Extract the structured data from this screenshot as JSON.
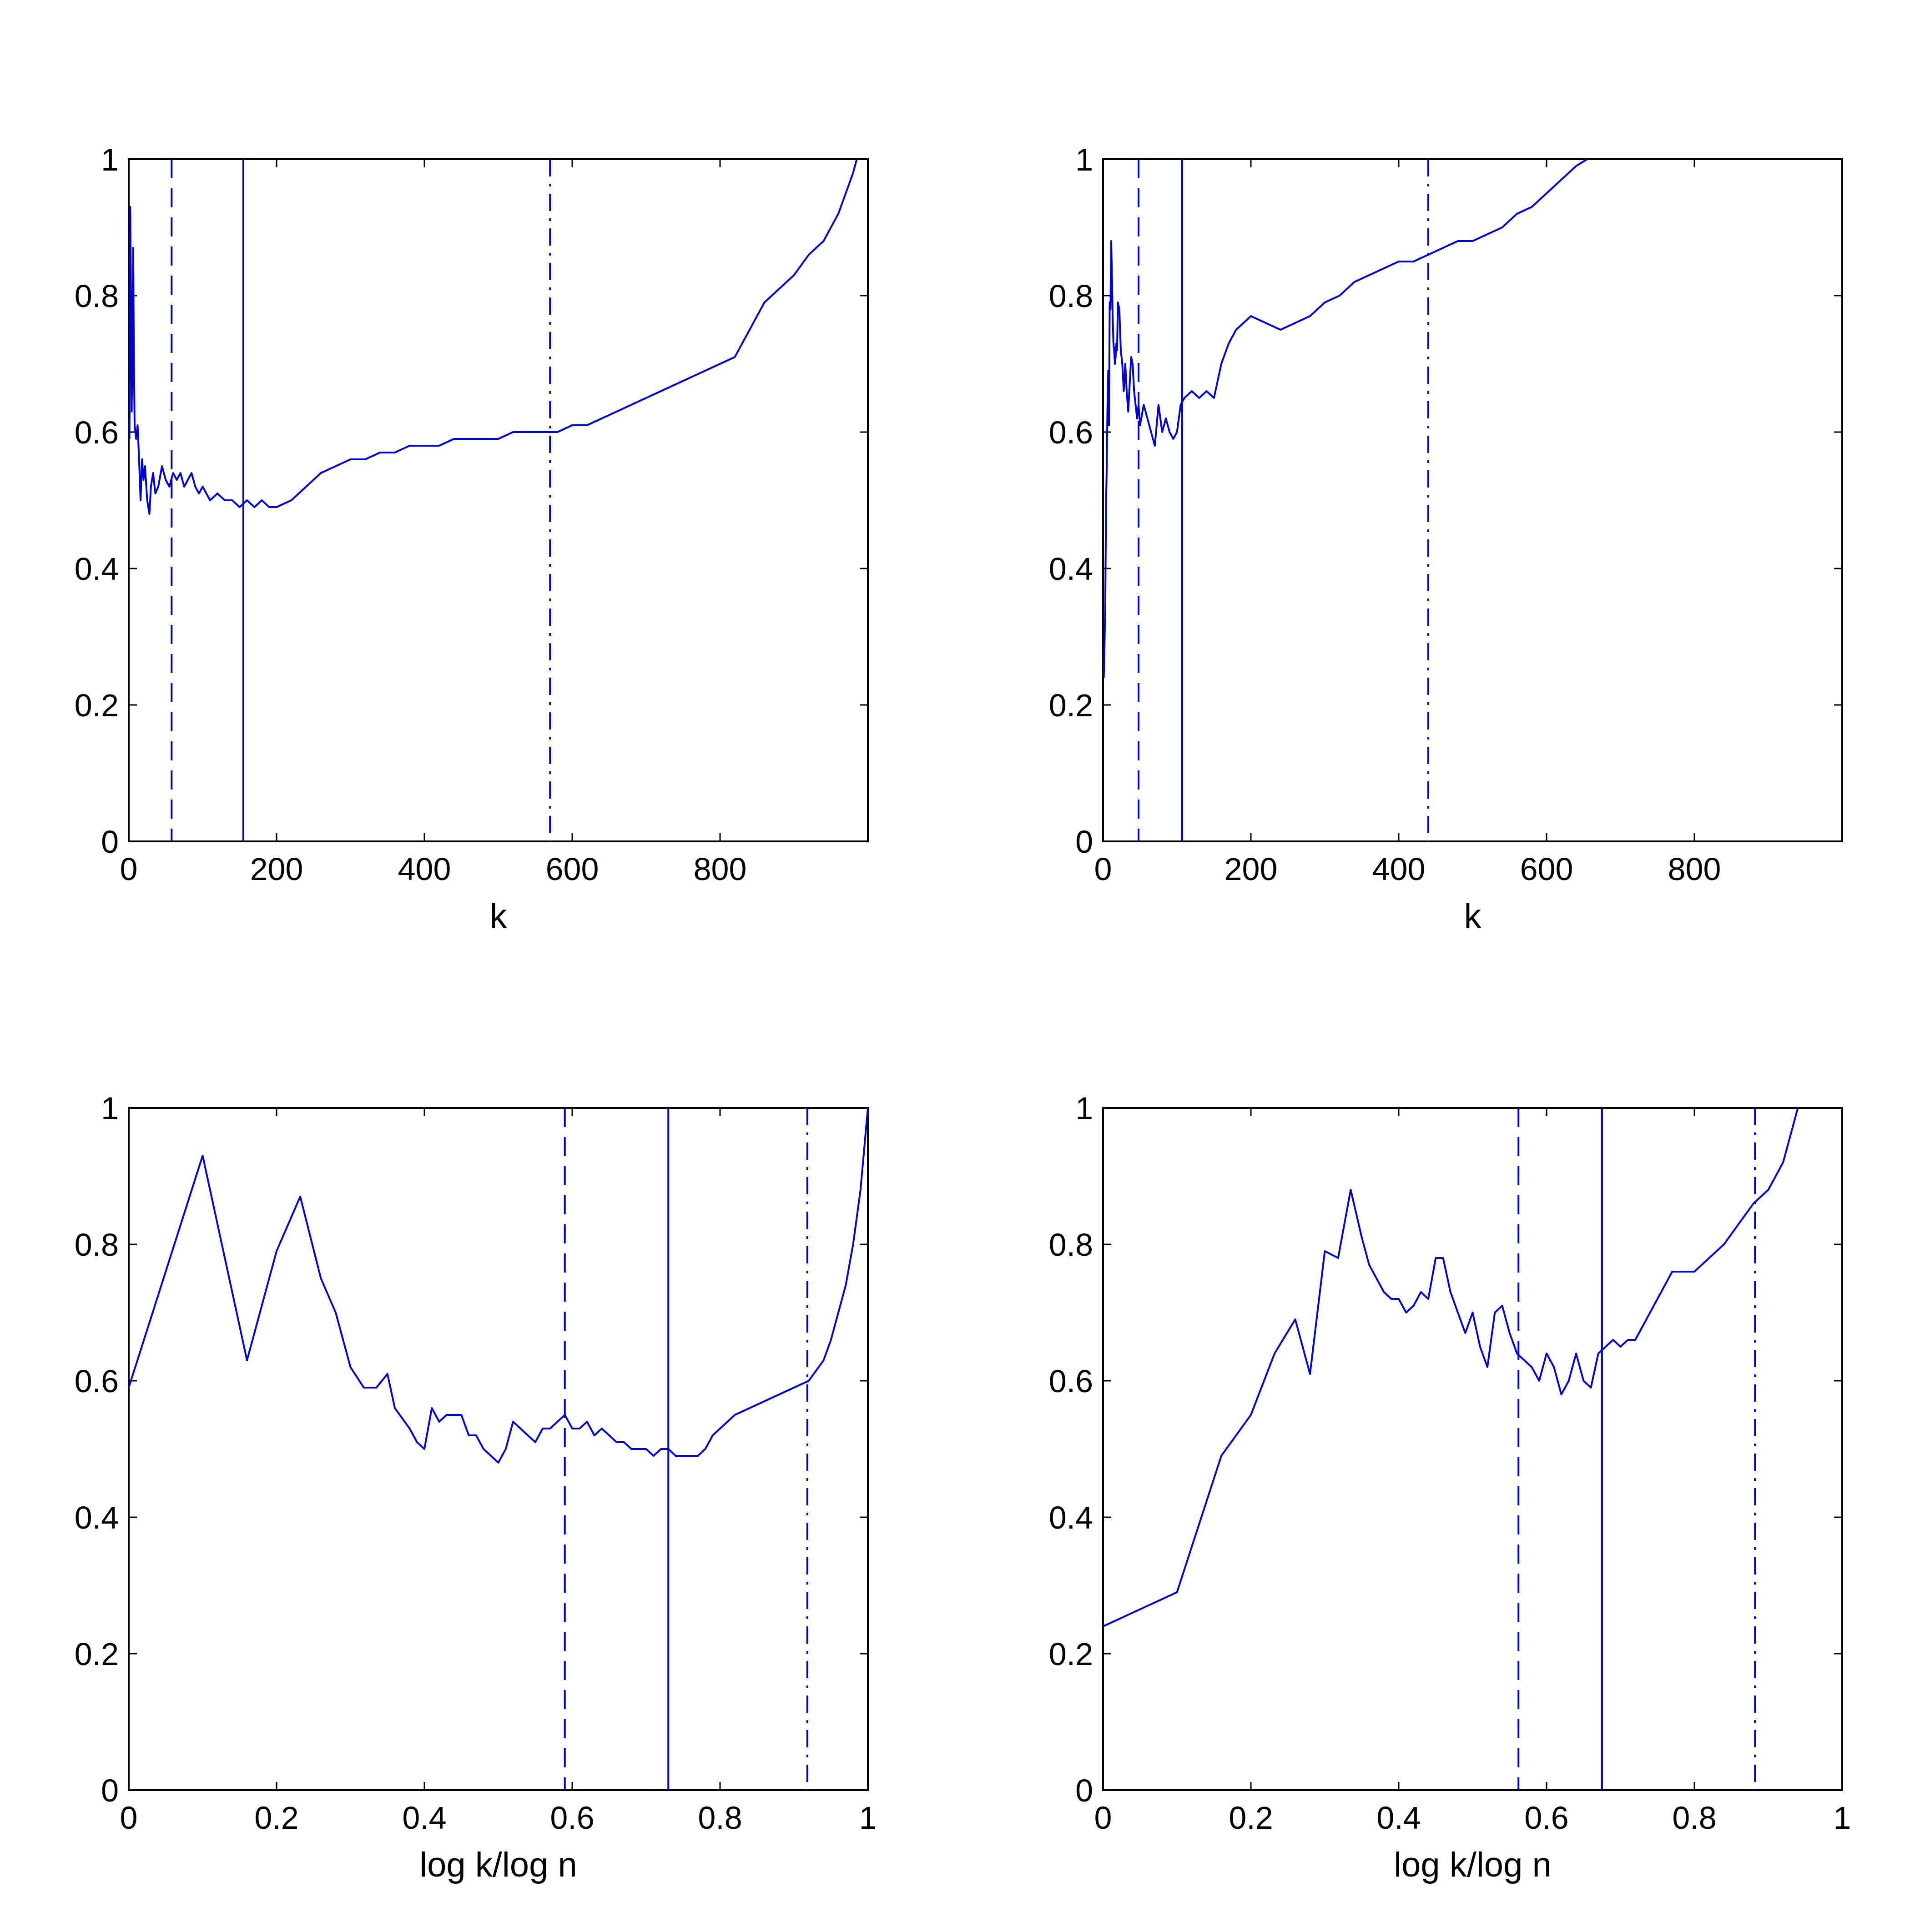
{
  "colors": {
    "line": "#0000d0",
    "axes": "#000000",
    "background": "#ffffff"
  },
  "chart_data": [
    {
      "type": "line",
      "xlabel": "k",
      "ylabel": "",
      "xlim": [
        0,
        1000
      ],
      "ylim": [
        0,
        1
      ],
      "grid": false,
      "x_ticks": [
        0,
        200,
        400,
        600,
        800
      ],
      "x_tick_labels": [
        "0",
        "200",
        "400",
        "600",
        "800"
      ],
      "y_ticks": [
        0,
        0.2,
        0.4,
        0.6,
        0.8,
        1
      ],
      "y_tick_labels": [
        "0",
        "0.2",
        "0.4",
        "0.6",
        "0.8",
        "1"
      ],
      "series": [
        {
          "x": [
            1,
            2,
            3,
            4,
            5,
            6,
            7,
            8,
            10,
            12,
            14,
            16,
            18,
            20,
            22,
            25,
            28,
            30,
            33,
            36,
            40,
            45,
            50,
            55,
            60,
            65,
            70,
            75,
            80,
            85,
            90,
            95,
            100,
            110,
            120,
            130,
            140,
            150,
            160,
            170,
            180,
            190,
            200,
            220,
            240,
            260,
            280,
            300,
            320,
            340,
            360,
            380,
            400,
            420,
            440,
            460,
            480,
            500,
            520,
            540,
            560,
            580,
            600,
            620,
            640,
            660,
            680,
            700,
            720,
            740,
            760,
            780,
            800,
            820,
            840,
            860,
            880,
            900,
            920,
            940,
            960,
            970,
            980,
            985
          ],
          "y": [
            0.59,
            0.93,
            0.8,
            0.63,
            0.75,
            0.87,
            0.7,
            0.61,
            0.59,
            0.61,
            0.56,
            0.5,
            0.56,
            0.53,
            0.55,
            0.5,
            0.48,
            0.52,
            0.54,
            0.51,
            0.52,
            0.55,
            0.53,
            0.52,
            0.54,
            0.53,
            0.54,
            0.52,
            0.53,
            0.54,
            0.52,
            0.51,
            0.52,
            0.5,
            0.51,
            0.5,
            0.5,
            0.49,
            0.5,
            0.49,
            0.5,
            0.49,
            0.49,
            0.5,
            0.52,
            0.54,
            0.55,
            0.56,
            0.56,
            0.57,
            0.57,
            0.58,
            0.58,
            0.58,
            0.59,
            0.59,
            0.59,
            0.59,
            0.6,
            0.6,
            0.6,
            0.6,
            0.61,
            0.61,
            0.62,
            0.63,
            0.64,
            0.65,
            0.66,
            0.67,
            0.68,
            0.69,
            0.7,
            0.71,
            0.75,
            0.79,
            0.81,
            0.83,
            0.86,
            0.88,
            0.92,
            0.95,
            0.98,
            1.0
          ]
        }
      ],
      "vlines": [
        {
          "x": 58,
          "style": "dashed"
        },
        {
          "x": 155,
          "style": "solid"
        },
        {
          "x": 570,
          "style": "dashdot"
        }
      ]
    },
    {
      "type": "line",
      "xlabel": "k",
      "ylabel": "",
      "xlim": [
        0,
        1000
      ],
      "ylim": [
        0,
        1
      ],
      "grid": false,
      "x_ticks": [
        0,
        200,
        400,
        600,
        800
      ],
      "x_tick_labels": [
        "0",
        "200",
        "400",
        "600",
        "800"
      ],
      "y_ticks": [
        0,
        0.2,
        0.4,
        0.6,
        0.8,
        1
      ],
      "y_tick_labels": [
        "0",
        "0.2",
        "0.4",
        "0.6",
        "0.8",
        "1"
      ],
      "series": [
        {
          "x": [
            1,
            2,
            3,
            4,
            5,
            6,
            7,
            8,
            9,
            10,
            11,
            12,
            13,
            14,
            15,
            16,
            17,
            18,
            19,
            20,
            22,
            24,
            26,
            28,
            30,
            32,
            34,
            36,
            38,
            40,
            42,
            44,
            46,
            48,
            50,
            55,
            60,
            65,
            70,
            75,
            80,
            85,
            90,
            95,
            100,
            105,
            110,
            120,
            130,
            140,
            150,
            160,
            170,
            180,
            190,
            200,
            220,
            240,
            260,
            280,
            300,
            320,
            340,
            360,
            380,
            400,
            420,
            440,
            460,
            480,
            500,
            520,
            540,
            560,
            580,
            600,
            620,
            640,
            655
          ],
          "y": [
            0.24,
            0.29,
            0.35,
            0.49,
            0.55,
            0.64,
            0.69,
            0.61,
            0.79,
            0.78,
            0.88,
            0.83,
            0.77,
            0.73,
            0.72,
            0.7,
            0.71,
            0.73,
            0.72,
            0.79,
            0.78,
            0.72,
            0.7,
            0.66,
            0.7,
            0.66,
            0.63,
            0.67,
            0.71,
            0.7,
            0.66,
            0.64,
            0.62,
            0.64,
            0.61,
            0.64,
            0.62,
            0.6,
            0.58,
            0.64,
            0.6,
            0.62,
            0.6,
            0.59,
            0.6,
            0.64,
            0.65,
            0.66,
            0.65,
            0.66,
            0.65,
            0.7,
            0.73,
            0.75,
            0.76,
            0.77,
            0.76,
            0.75,
            0.76,
            0.77,
            0.79,
            0.8,
            0.82,
            0.83,
            0.84,
            0.85,
            0.85,
            0.86,
            0.87,
            0.88,
            0.88,
            0.89,
            0.9,
            0.92,
            0.93,
            0.95,
            0.97,
            0.99,
            1.0
          ]
        }
      ],
      "vlines": [
        {
          "x": 48,
          "style": "dashed"
        },
        {
          "x": 107,
          "style": "solid"
        },
        {
          "x": 440,
          "style": "dashdot"
        }
      ]
    },
    {
      "type": "line",
      "xlabel": "log k/log n",
      "ylabel": "",
      "xlim": [
        0,
        1
      ],
      "ylim": [
        0,
        1
      ],
      "grid": false,
      "x_ticks": [
        0,
        0.2,
        0.4,
        0.6,
        0.8,
        1
      ],
      "x_tick_labels": [
        "0",
        "0.2",
        "0.4",
        "0.6",
        "0.8",
        "1"
      ],
      "y_ticks": [
        0,
        0.2,
        0.4,
        0.6,
        0.8,
        1
      ],
      "y_tick_labels": [
        "0",
        "0.2",
        "0.4",
        "0.6",
        "0.8",
        "1"
      ],
      "series": [
        {
          "x": [
            0,
            0.1,
            0.16,
            0.2,
            0.232,
            0.26,
            0.28,
            0.3,
            0.318,
            0.335,
            0.35,
            0.36,
            0.38,
            0.39,
            0.4,
            0.41,
            0.42,
            0.43,
            0.44,
            0.45,
            0.46,
            0.47,
            0.48,
            0.49,
            0.5,
            0.51,
            0.515,
            0.52,
            0.53,
            0.54,
            0.55,
            0.56,
            0.57,
            0.58,
            0.59,
            0.6,
            0.61,
            0.62,
            0.63,
            0.64,
            0.65,
            0.66,
            0.67,
            0.68,
            0.69,
            0.7,
            0.71,
            0.72,
            0.73,
            0.74,
            0.75,
            0.76,
            0.77,
            0.78,
            0.79,
            0.8,
            0.82,
            0.84,
            0.86,
            0.88,
            0.9,
            0.92,
            0.94,
            0.95,
            0.96,
            0.97,
            0.98,
            0.99,
            1.0
          ],
          "y": [
            0.59,
            0.93,
            0.63,
            0.79,
            0.87,
            0.75,
            0.7,
            0.62,
            0.59,
            0.59,
            0.61,
            0.56,
            0.53,
            0.51,
            0.5,
            0.56,
            0.54,
            0.55,
            0.55,
            0.55,
            0.52,
            0.52,
            0.5,
            0.49,
            0.48,
            0.5,
            0.52,
            0.54,
            0.53,
            0.52,
            0.51,
            0.53,
            0.53,
            0.54,
            0.55,
            0.53,
            0.53,
            0.54,
            0.52,
            0.53,
            0.52,
            0.51,
            0.51,
            0.5,
            0.5,
            0.5,
            0.49,
            0.5,
            0.5,
            0.49,
            0.49,
            0.49,
            0.49,
            0.5,
            0.52,
            0.53,
            0.55,
            0.56,
            0.57,
            0.58,
            0.59,
            0.6,
            0.63,
            0.66,
            0.7,
            0.74,
            0.8,
            0.88,
            1.0
          ]
        }
      ],
      "vlines": [
        {
          "x": 0.59,
          "style": "dashed"
        },
        {
          "x": 0.73,
          "style": "solid"
        },
        {
          "x": 0.918,
          "style": "dashdot"
        }
      ]
    },
    {
      "type": "line",
      "xlabel": "log k/log n",
      "ylabel": "",
      "xlim": [
        0,
        1
      ],
      "ylim": [
        0,
        1
      ],
      "grid": false,
      "x_ticks": [
        0,
        0.2,
        0.4,
        0.6,
        0.8,
        1
      ],
      "x_tick_labels": [
        "0",
        "0.2",
        "0.4",
        "0.6",
        "0.8",
        "1"
      ],
      "y_ticks": [
        0,
        0.2,
        0.4,
        0.6,
        0.8,
        1
      ],
      "y_tick_labels": [
        "0",
        "0.2",
        "0.4",
        "0.6",
        "0.8",
        "1"
      ],
      "series": [
        {
          "x": [
            0,
            0.1,
            0.16,
            0.2,
            0.232,
            0.26,
            0.28,
            0.3,
            0.318,
            0.335,
            0.35,
            0.36,
            0.38,
            0.39,
            0.4,
            0.41,
            0.42,
            0.43,
            0.44,
            0.45,
            0.46,
            0.47,
            0.48,
            0.49,
            0.5,
            0.51,
            0.52,
            0.53,
            0.54,
            0.55,
            0.56,
            0.57,
            0.58,
            0.59,
            0.6,
            0.61,
            0.62,
            0.63,
            0.64,
            0.65,
            0.66,
            0.67,
            0.68,
            0.69,
            0.7,
            0.71,
            0.72,
            0.73,
            0.74,
            0.75,
            0.76,
            0.77,
            0.78,
            0.79,
            0.8,
            0.82,
            0.84,
            0.86,
            0.88,
            0.9,
            0.92,
            0.94
          ],
          "y": [
            0.24,
            0.29,
            0.49,
            0.55,
            0.64,
            0.69,
            0.61,
            0.79,
            0.78,
            0.88,
            0.81,
            0.77,
            0.73,
            0.72,
            0.72,
            0.7,
            0.71,
            0.73,
            0.72,
            0.78,
            0.78,
            0.73,
            0.7,
            0.67,
            0.7,
            0.65,
            0.62,
            0.7,
            0.71,
            0.67,
            0.64,
            0.63,
            0.62,
            0.6,
            0.64,
            0.62,
            0.58,
            0.6,
            0.64,
            0.6,
            0.59,
            0.64,
            0.65,
            0.66,
            0.65,
            0.66,
            0.66,
            0.68,
            0.7,
            0.72,
            0.74,
            0.76,
            0.76,
            0.76,
            0.76,
            0.78,
            0.8,
            0.83,
            0.86,
            0.88,
            0.92,
            1.0
          ]
        }
      ],
      "vlines": [
        {
          "x": 0.562,
          "style": "dashed"
        },
        {
          "x": 0.675,
          "style": "solid"
        },
        {
          "x": 0.882,
          "style": "dashdot"
        }
      ]
    }
  ]
}
